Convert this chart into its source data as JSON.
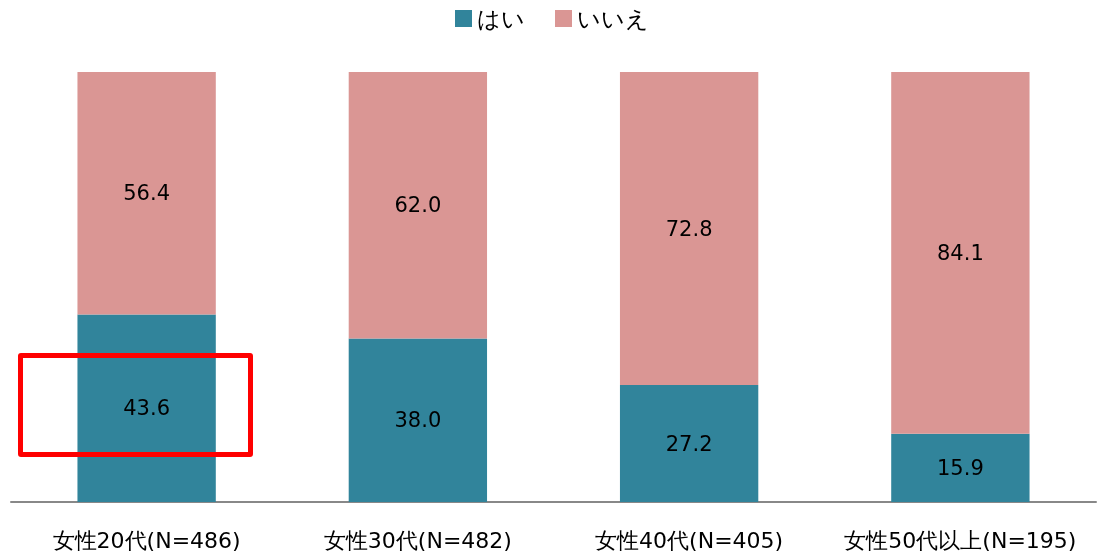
{
  "chart_data": {
    "type": "bar",
    "stacked": true,
    "legend": "top",
    "categories": [
      "女性20代(N=486)",
      "女性30代(N=482)",
      "女性40代(N=405)",
      "女性50代以上(N=195)"
    ],
    "series": [
      {
        "name": "はい",
        "color": "#31849b",
        "values": [
          43.6,
          38.0,
          27.2,
          15.9
        ],
        "value_labels": [
          "43.6",
          "38.0",
          "27.2",
          "15.9"
        ]
      },
      {
        "name": "いいえ",
        "color": "#da9694",
        "values": [
          56.4,
          62.0,
          72.8,
          84.1
        ],
        "value_labels": [
          "56.4",
          "62.0",
          "72.8",
          "84.1"
        ]
      }
    ]
  }
}
